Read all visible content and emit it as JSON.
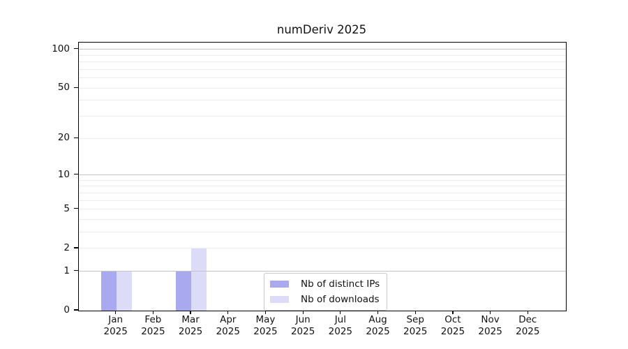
{
  "chart_data": {
    "type": "bar",
    "title": "numDeriv 2025",
    "categories": [
      "Jan 2025",
      "Feb 2025",
      "Mar 2025",
      "Apr 2025",
      "May 2025",
      "Jun 2025",
      "Jul 2025",
      "Aug 2025",
      "Sep 2025",
      "Oct 2025",
      "Nov 2025",
      "Dec 2025"
    ],
    "series": [
      {
        "name": "Nb of distinct IPs",
        "color": "#a9a9f0",
        "values": [
          1,
          0,
          1,
          0,
          0,
          0,
          0,
          0,
          0,
          0,
          0,
          0
        ]
      },
      {
        "name": "Nb of downloads",
        "color": "#dcdcf8",
        "values": [
          1,
          0,
          2,
          0,
          0,
          0,
          0,
          0,
          0,
          0,
          0,
          0
        ]
      }
    ],
    "y_axis": {
      "scale": "log1p",
      "tick_values": [
        0,
        1,
        2,
        5,
        10,
        20,
        50,
        100
      ],
      "tick_labels": [
        "0",
        "1",
        "2",
        "5",
        "10",
        "20",
        "50",
        "100"
      ],
      "major_gridlines": [
        1,
        10,
        100
      ],
      "minor_gridlines": [
        2,
        3,
        4,
        5,
        6,
        7,
        8,
        9,
        20,
        30,
        40,
        50,
        60,
        70,
        80,
        90
      ],
      "ylim": [
        0,
        113
      ]
    },
    "x_axis": {
      "tick_count": 12
    },
    "legend": {
      "position": "lower center",
      "entries": [
        "Nb of distinct IPs",
        "Nb of downloads"
      ]
    },
    "grid": true,
    "colors": {
      "bar_distinct_ips": "#a9a9f0",
      "bar_downloads": "#dcdcf8",
      "major_grid": "#c3c3c3",
      "minor_grid": "#ececec",
      "axis": "#000000",
      "background": "#ffffff",
      "text": "#111111"
    }
  }
}
